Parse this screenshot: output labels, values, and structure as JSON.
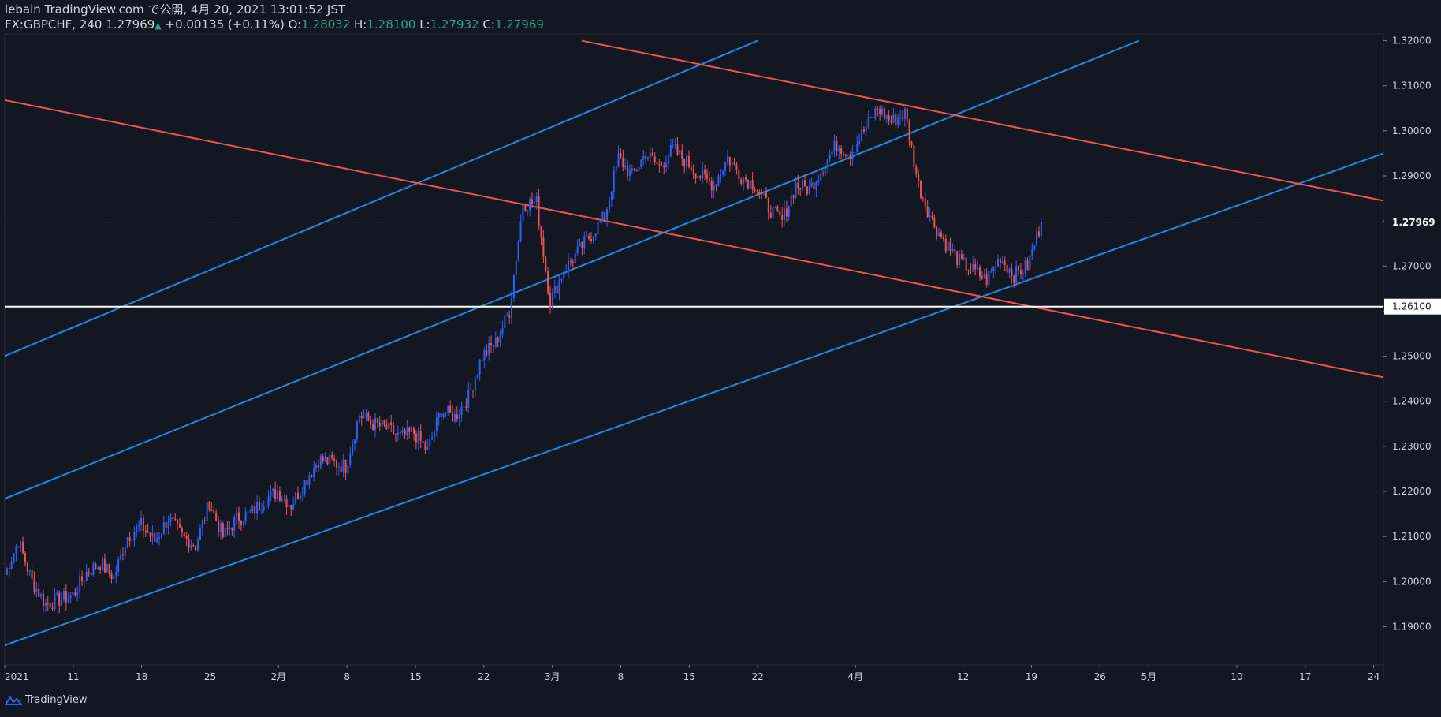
{
  "header": {
    "publish_line": "lebain TradingView.com で公開, 4月 20, 2021 13:01:52 JST",
    "symbol": "FX:GBPCHF, 240",
    "last": "1.27969",
    "change": "+0.00135 (+0.11%)",
    "o_label": "O:",
    "o_val": "1.28032",
    "h_label": "H:",
    "h_val": "1.28100",
    "l_label": "L:",
    "l_val": "1.27932",
    "c_label": "C:",
    "c_val": "1.27969"
  },
  "footer": {
    "brand": "TradingView"
  },
  "colors": {
    "bg": "#131722",
    "up": "#2962ff",
    "down": "#ef5350",
    "blue_line": "#1e88e5",
    "red_line": "#ef5350",
    "level": "#ffffff",
    "text": "#d1d4dc"
  },
  "chart_data": {
    "type": "candlestick",
    "y_ticks": [
      "1.32000",
      "1.31000",
      "1.30000",
      "1.29000",
      "1.28000",
      "1.27000",
      "1.26000",
      "1.25000",
      "1.24000",
      "1.23000",
      "1.22000",
      "1.21000",
      "1.20000",
      "1.19000"
    ],
    "x_ticks": [
      "2021",
      "11",
      "18",
      "25",
      "2月",
      "8",
      "15",
      "22",
      "3月",
      "8",
      "15",
      "22",
      "4月",
      "12",
      "19",
      "26",
      "5月",
      "10",
      "17",
      "24"
    ],
    "price_label": "1.27969",
    "level_label": "1.26100",
    "level_value": 1.261,
    "x_range": [
      "2021-01-04",
      "2021-05-25"
    ],
    "y_range": [
      1.1815,
      1.3215
    ],
    "close_path": [
      [
        "2021-01-04",
        1.2015
      ],
      [
        "2021-01-05",
        1.209
      ],
      [
        "2021-01-06",
        1.2
      ],
      [
        "2021-01-07",
        1.195
      ],
      [
        "2021-01-08",
        1.196
      ],
      [
        "2021-01-11",
        1.197
      ],
      [
        "2021-01-12",
        1.202
      ],
      [
        "2021-01-13",
        1.204
      ],
      [
        "2021-01-14",
        1.201
      ],
      [
        "2021-01-15",
        1.21
      ],
      [
        "2021-01-18",
        1.2125
      ],
      [
        "2021-01-19",
        1.209
      ],
      [
        "2021-01-20",
        1.214
      ],
      [
        "2021-01-21",
        1.21
      ],
      [
        "2021-01-22",
        1.208
      ],
      [
        "2021-01-25",
        1.2175
      ],
      [
        "2021-01-26",
        1.21
      ],
      [
        "2021-01-27",
        1.214
      ],
      [
        "2021-01-28",
        1.215
      ],
      [
        "2021-01-29",
        1.218
      ],
      [
        "2021-02-01",
        1.22
      ],
      [
        "2021-02-02",
        1.217
      ],
      [
        "2021-02-03",
        1.222
      ],
      [
        "2021-02-04",
        1.227
      ],
      [
        "2021-02-05",
        1.2265
      ],
      [
        "2021-02-08",
        1.2255
      ],
      [
        "2021-02-09",
        1.237
      ],
      [
        "2021-02-10",
        1.235
      ],
      [
        "2021-02-11",
        1.234
      ],
      [
        "2021-02-12",
        1.232
      ],
      [
        "2021-02-15",
        1.233
      ],
      [
        "2021-02-16",
        1.229
      ],
      [
        "2021-02-17",
        1.238
      ],
      [
        "2021-02-18",
        1.2365
      ],
      [
        "2021-02-19",
        1.241
      ],
      [
        "2021-02-22",
        1.25
      ],
      [
        "2021-02-23",
        1.253
      ],
      [
        "2021-02-24",
        1.26
      ],
      [
        "2021-02-25",
        1.284
      ],
      [
        "2021-02-26",
        1.284
      ],
      [
        "2021-03-01",
        1.262
      ],
      [
        "2021-03-02",
        1.269
      ],
      [
        "2021-03-03",
        1.273
      ],
      [
        "2021-03-04",
        1.277
      ],
      [
        "2021-03-05",
        1.281
      ],
      [
        "2021-03-08",
        1.294
      ],
      [
        "2021-03-09",
        1.29
      ],
      [
        "2021-03-10",
        1.295
      ],
      [
        "2021-03-11",
        1.292
      ],
      [
        "2021-03-12",
        1.296
      ],
      [
        "2021-03-15",
        1.293
      ],
      [
        "2021-03-16",
        1.29
      ],
      [
        "2021-03-17",
        1.288
      ],
      [
        "2021-03-18",
        1.294
      ],
      [
        "2021-03-19",
        1.29
      ],
      [
        "2021-03-22",
        1.288
      ],
      [
        "2021-03-23",
        1.283
      ],
      [
        "2021-03-24",
        1.28
      ],
      [
        "2021-03-25",
        1.288
      ],
      [
        "2021-03-26",
        1.287
      ],
      [
        "2021-03-29",
        1.292
      ],
      [
        "2021-03-30",
        1.297
      ],
      [
        "2021-03-31",
        1.295
      ],
      [
        "2021-04-01",
        1.3
      ],
      [
        "2021-04-02",
        1.305
      ],
      [
        "2021-04-05",
        1.302
      ],
      [
        "2021-04-06",
        1.304
      ],
      [
        "2021-04-07",
        1.288
      ],
      [
        "2021-04-08",
        1.28
      ],
      [
        "2021-04-09",
        1.275
      ],
      [
        "2021-04-12",
        1.271
      ],
      [
        "2021-04-13",
        1.269
      ],
      [
        "2021-04-14",
        1.267
      ],
      [
        "2021-04-15",
        1.272
      ],
      [
        "2021-04-16",
        1.268
      ],
      [
        "2021-04-19",
        1.27
      ],
      [
        "2021-04-20",
        1.2797
      ]
    ],
    "trendlines": [
      {
        "color": "blue",
        "from": [
          "2020-12-30",
          1.182
        ],
        "to": [
          "2021-05-25",
          1.295
        ]
      },
      {
        "color": "blue",
        "from": [
          "2020-12-30",
          1.214
        ],
        "to": [
          "2021-04-30",
          1.32
        ]
      },
      {
        "color": "blue",
        "from": [
          "2020-12-30",
          1.2455
        ],
        "to": [
          "2021-03-22",
          1.32
        ]
      },
      {
        "color": "red",
        "from": [
          "2020-12-30",
          1.309
        ],
        "to": [
          "2021-05-25",
          1.2453
        ]
      },
      {
        "color": "red",
        "from": [
          "2021-03-04",
          1.32
        ],
        "to": [
          "2021-05-25",
          1.2845
        ]
      }
    ]
  }
}
